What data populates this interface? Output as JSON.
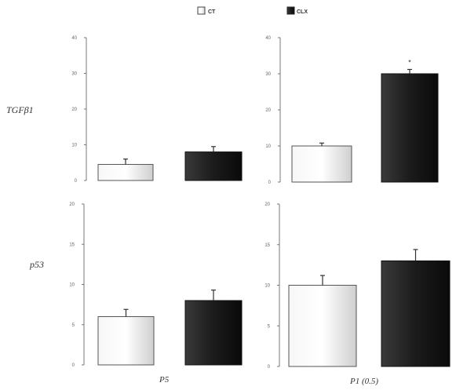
{
  "legend": [
    {
      "label": "CT",
      "color": "#e6e6e6"
    },
    {
      "label": "CLX",
      "color": "#1e1e1e"
    }
  ],
  "row_labels": [
    "TGFβ1",
    "p53"
  ],
  "col_labels": [
    "P5",
    "P1 (0.5)"
  ],
  "chart_data": [
    {
      "type": "bar",
      "panel": "TGFβ1 / P5",
      "categories": [
        "CT",
        "CLX"
      ],
      "values": [
        4.5,
        8.0
      ],
      "errors": [
        1.5,
        1.5
      ],
      "ylim": [
        0,
        40
      ],
      "yticks": [
        "0",
        "10",
        "20",
        "30",
        "40"
      ],
      "annotations": [
        "",
        ""
      ]
    },
    {
      "type": "bar",
      "panel": "TGFβ1 / P1 (0.5)",
      "categories": [
        "CT",
        "CLX"
      ],
      "values": [
        10,
        30
      ],
      "errors": [
        0.8,
        1.2
      ],
      "ylim": [
        0,
        40
      ],
      "yticks": [
        "0",
        "10",
        "20",
        "30",
        "40"
      ],
      "annotations": [
        "",
        "*"
      ]
    },
    {
      "type": "bar",
      "panel": "p53 / P5",
      "categories": [
        "CT",
        "CLX"
      ],
      "values": [
        6.0,
        8.0
      ],
      "errors": [
        0.9,
        1.3
      ],
      "ylim": [
        0,
        20
      ],
      "yticks": [
        "0",
        "5",
        "10",
        "15",
        "20"
      ],
      "annotations": [
        "",
        ""
      ]
    },
    {
      "type": "bar",
      "panel": "p53 / P1 (0.5)",
      "categories": [
        "CT",
        "CLX"
      ],
      "values": [
        10,
        13
      ],
      "errors": [
        1.2,
        1.4
      ],
      "ylim": [
        0,
        20
      ],
      "yticks": [
        "0",
        "5",
        "10",
        "15",
        "20"
      ],
      "annotations": [
        "",
        ""
      ]
    }
  ]
}
